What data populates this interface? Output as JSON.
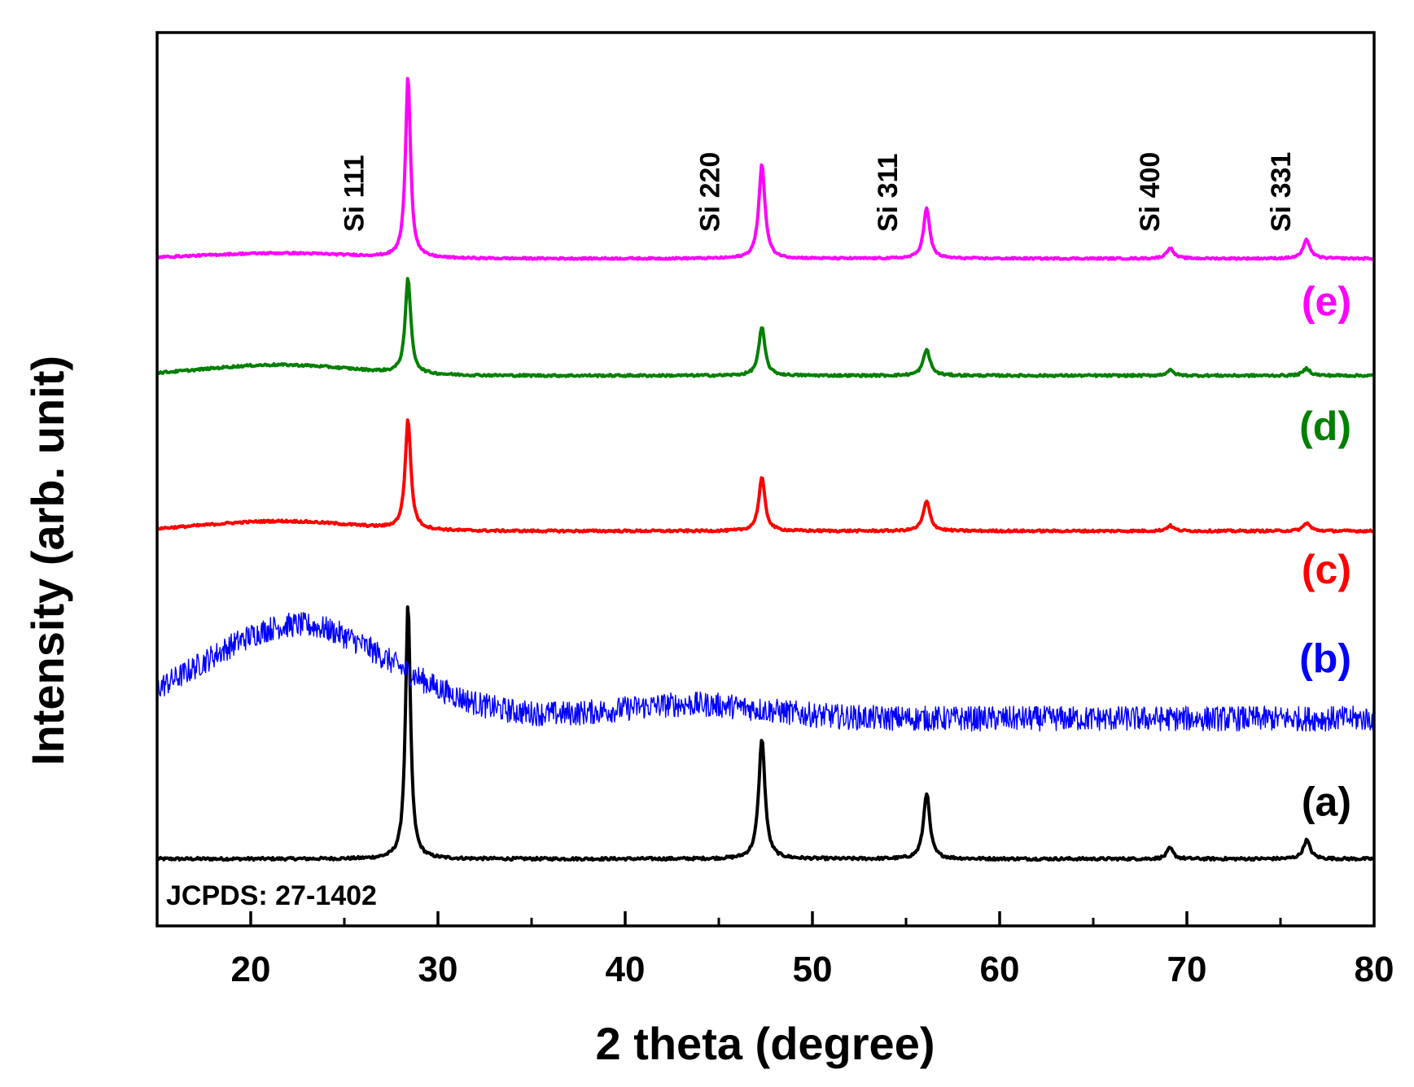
{
  "chart_data": {
    "type": "line",
    "title": "",
    "xlabel": "2 theta (degree)",
    "ylabel": "Intensity (arb. unit)",
    "xlim": [
      15,
      80
    ],
    "ylim": [
      0,
      100
    ],
    "grid": false,
    "x_ticks": [
      20,
      30,
      40,
      50,
      60,
      70,
      80
    ],
    "x_minor_ticks": [
      25,
      35,
      45,
      55,
      65,
      75
    ],
    "note": "JCPDS: 27-1402",
    "peak_labels": [
      {
        "label": "Si 111",
        "x": 25.5
      },
      {
        "label": "Si 220",
        "x": 44.5
      },
      {
        "label": "Si 311",
        "x": 54
      },
      {
        "label": "Si 400",
        "x": 68
      },
      {
        "label": "Si 331",
        "x": 75
      }
    ],
    "series": [
      {
        "name": "(a)",
        "color": "#000000",
        "baseline": 7.5,
        "hump": [],
        "noise": 0.15,
        "peaks": [
          {
            "x": 28.4,
            "height": 28.5,
            "width": 0.16
          },
          {
            "x": 47.3,
            "height": 13.5,
            "width": 0.2
          },
          {
            "x": 56.1,
            "height": 7.4,
            "width": 0.2
          },
          {
            "x": 69.1,
            "height": 1.2,
            "width": 0.2
          },
          {
            "x": 76.4,
            "height": 2.1,
            "width": 0.22
          }
        ],
        "label_value_y": 14
      },
      {
        "name": "(b)",
        "color": "#0000ff",
        "baseline": 23.2,
        "hump": [
          {
            "x": 22.5,
            "height": 10.5,
            "width": 5.0
          },
          {
            "x": 43.5,
            "height": 1.6,
            "width": 4.0
          }
        ],
        "noise": 1.4,
        "peaks": [],
        "label_value_y": 30
      },
      {
        "name": "(c)",
        "color": "#ff0000",
        "baseline": 44.2,
        "hump": [
          {
            "x": 21.5,
            "height": 1.1,
            "width": 4.0
          }
        ],
        "noise": 0.12,
        "peaks": [
          {
            "x": 28.4,
            "height": 12.3,
            "width": 0.18
          },
          {
            "x": 47.3,
            "height": 6.0,
            "width": 0.2
          },
          {
            "x": 56.1,
            "height": 3.3,
            "width": 0.22
          },
          {
            "x": 69.1,
            "height": 0.6,
            "width": 0.22
          },
          {
            "x": 76.4,
            "height": 0.9,
            "width": 0.22
          }
        ],
        "label_value_y": 40
      },
      {
        "name": "(d)",
        "color": "#008000",
        "baseline": 61.6,
        "hump": [
          {
            "x": 21.5,
            "height": 1.2,
            "width": 4.0
          }
        ],
        "noise": 0.12,
        "peaks": [
          {
            "x": 28.4,
            "height": 10.6,
            "width": 0.18
          },
          {
            "x": 47.3,
            "height": 5.4,
            "width": 0.2
          },
          {
            "x": 56.1,
            "height": 2.9,
            "width": 0.22
          },
          {
            "x": 69.1,
            "height": 0.6,
            "width": 0.22
          },
          {
            "x": 76.4,
            "height": 0.8,
            "width": 0.22
          }
        ],
        "label_value_y": 56
      },
      {
        "name": "(e)",
        "color": "#ff00ff",
        "baseline": 74.7,
        "hump": [
          {
            "x": 21.5,
            "height": 0.6,
            "width": 4.0
          }
        ],
        "noise": 0.1,
        "peaks": [
          {
            "x": 28.4,
            "height": 20.4,
            "width": 0.16
          },
          {
            "x": 47.3,
            "height": 10.5,
            "width": 0.2
          },
          {
            "x": 56.1,
            "height": 5.6,
            "width": 0.2
          },
          {
            "x": 69.1,
            "height": 1.2,
            "width": 0.22
          },
          {
            "x": 76.4,
            "height": 2.1,
            "width": 0.22
          }
        ],
        "label_value_y": 70
      }
    ]
  }
}
